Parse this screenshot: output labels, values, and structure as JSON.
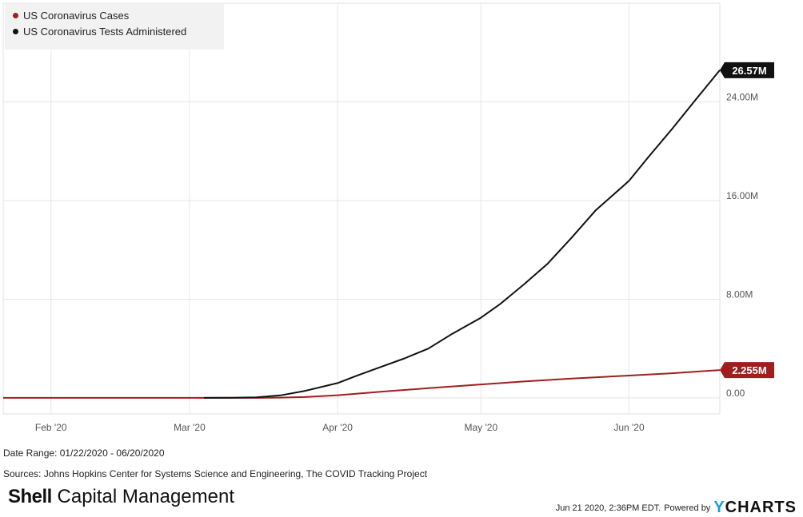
{
  "chart_data": {
    "type": "line",
    "x_range": [
      "2020-01-22",
      "2020-06-20"
    ],
    "x_ticks": [
      {
        "date": "2020-02-01",
        "label": "Feb '20"
      },
      {
        "date": "2020-03-01",
        "label": "Mar '20"
      },
      {
        "date": "2020-04-01",
        "label": "Apr '20"
      },
      {
        "date": "2020-05-01",
        "label": "May '20"
      },
      {
        "date": "2020-06-01",
        "label": "Jun '20"
      }
    ],
    "y_ticks": [
      {
        "value": 0,
        "label": "0.00"
      },
      {
        "value": 8000000,
        "label": "8.00M"
      },
      {
        "value": 16000000,
        "label": "16.00M"
      },
      {
        "value": 24000000,
        "label": "24.00M"
      }
    ],
    "ylim": [
      -1300000,
      32000000
    ],
    "grid": true,
    "legend_position": "top-left",
    "series": [
      {
        "name": "US Coronavirus Cases",
        "color": "#a01e1e",
        "end_label": "2.255M",
        "points": [
          [
            "2020-01-22",
            0
          ],
          [
            "2020-03-01",
            0
          ],
          [
            "2020-03-10",
            1000
          ],
          [
            "2020-03-15",
            3500
          ],
          [
            "2020-03-20",
            19000
          ],
          [
            "2020-03-25",
            66000
          ],
          [
            "2020-04-01",
            215000
          ],
          [
            "2020-04-10",
            500000
          ],
          [
            "2020-04-20",
            785000
          ],
          [
            "2020-05-01",
            1090000
          ],
          [
            "2020-05-10",
            1330000
          ],
          [
            "2020-05-20",
            1570000
          ],
          [
            "2020-06-01",
            1810000
          ],
          [
            "2020-06-10",
            2000000
          ],
          [
            "2020-06-20",
            2255000
          ]
        ]
      },
      {
        "name": "US Coronavirus Tests Administered",
        "color": "#111111",
        "end_label": "26.57M",
        "points": [
          [
            "2020-03-04",
            0
          ],
          [
            "2020-03-10",
            8000
          ],
          [
            "2020-03-15",
            40000
          ],
          [
            "2020-03-20",
            200000
          ],
          [
            "2020-03-25",
            550000
          ],
          [
            "2020-04-01",
            1200000
          ],
          [
            "2020-04-05",
            1800000
          ],
          [
            "2020-04-10",
            2500000
          ],
          [
            "2020-04-15",
            3200000
          ],
          [
            "2020-04-20",
            4000000
          ],
          [
            "2020-04-25",
            5200000
          ],
          [
            "2020-05-01",
            6500000
          ],
          [
            "2020-05-05",
            7600000
          ],
          [
            "2020-05-10",
            9200000
          ],
          [
            "2020-05-15",
            10900000
          ],
          [
            "2020-05-20",
            13000000
          ],
          [
            "2020-05-25",
            15200000
          ],
          [
            "2020-06-01",
            17600000
          ],
          [
            "2020-06-05",
            19500000
          ],
          [
            "2020-06-10",
            21800000
          ],
          [
            "2020-06-15",
            24200000
          ],
          [
            "2020-06-20",
            26570000
          ]
        ]
      }
    ]
  },
  "footer": {
    "date_range": "Date Range: 01/22/2020 - 06/20/2020",
    "sources": "Sources: Johns Hopkins Center for Systems Science and Engineering, The COVID Tracking Project",
    "brand_bold": "Shell",
    "brand_light": "Capital Management",
    "timestamp": "Jun 21 2020, 2:36PM EDT.",
    "powered_by": "Powered by",
    "ycharts_y": "Y",
    "ycharts_rest": "CHARTS"
  }
}
